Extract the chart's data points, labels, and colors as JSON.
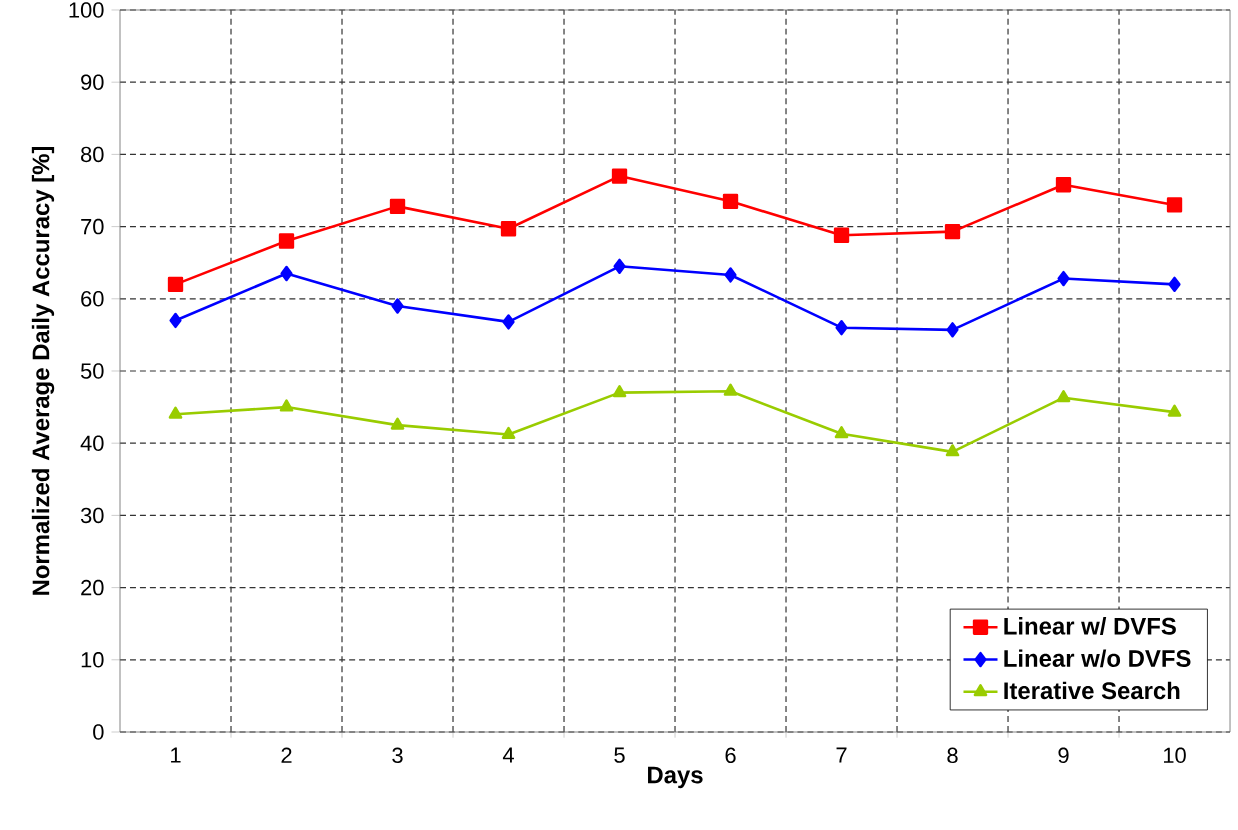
{
  "chart_data": {
    "type": "line",
    "xlabel": "Days",
    "ylabel": "Normalized Average Daily Accuracy [%]",
    "categories": [
      "1",
      "2",
      "3",
      "4",
      "5",
      "6",
      "7",
      "8",
      "9",
      "10"
    ],
    "ylim": [
      0,
      100
    ],
    "yticks": [
      0,
      10,
      20,
      30,
      40,
      50,
      60,
      70,
      80,
      90,
      100
    ],
    "grid": true,
    "legend": "bottom right",
    "line_style": "solid",
    "series": [
      {
        "name": "Linear w/ DVFS",
        "color": "#ff0000",
        "marker": "square",
        "values": [
          62,
          68,
          72.8,
          69.7,
          77,
          73.5,
          68.8,
          69.3,
          75.8,
          73
        ]
      },
      {
        "name": "Linear w/o DVFS",
        "color": "#0000ff",
        "marker": "diamond",
        "values": [
          57,
          63.5,
          59,
          56.8,
          64.5,
          63.3,
          56,
          55.7,
          62.8,
          62
        ]
      },
      {
        "name": "Iterative Search",
        "color": "#99cc00",
        "marker": "triangle",
        "values": [
          44,
          45,
          42.5,
          41.2,
          47,
          47.2,
          41.3,
          38.8,
          46.3,
          44.3
        ]
      }
    ]
  }
}
